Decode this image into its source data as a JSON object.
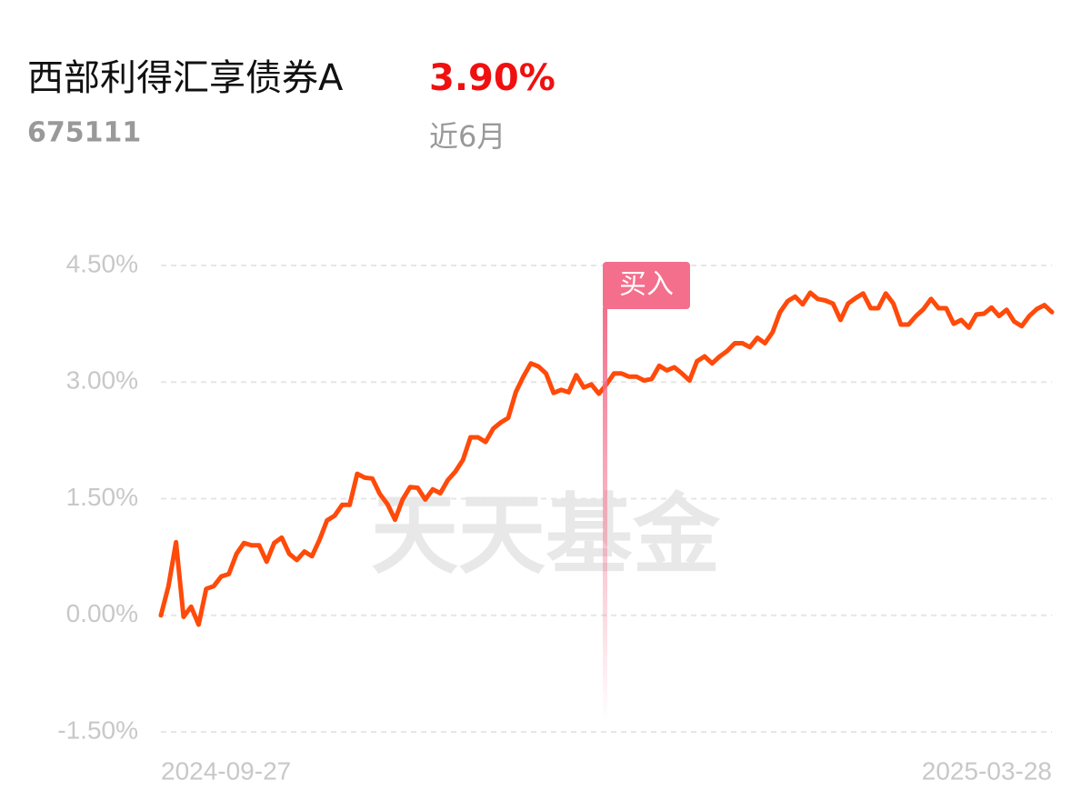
{
  "header": {
    "title": "西部利得汇享债券A",
    "code": "675111",
    "return": "3.90%",
    "period": "近6月"
  },
  "watermark": "天天基金",
  "chart_data": {
    "type": "line",
    "color": "#ff4a0a",
    "annotation": "买入",
    "grid": true,
    "categories": [
      "2024-09-27",
      null,
      null,
      null,
      null,
      null,
      null,
      null,
      null,
      null,
      null,
      null,
      null,
      null,
      null,
      null,
      null,
      null,
      null,
      null,
      null,
      null,
      null,
      null,
      null,
      null,
      null,
      null,
      null,
      null,
      null,
      null,
      null,
      null,
      null,
      null,
      null,
      null,
      null,
      null,
      null,
      null,
      null,
      null,
      null,
      null,
      null,
      null,
      null,
      null,
      null,
      null,
      null,
      null,
      null,
      null,
      null,
      null,
      null,
      null,
      null,
      null,
      null,
      null,
      null,
      null,
      null,
      null,
      null,
      null,
      null,
      null,
      null,
      null,
      null,
      null,
      null,
      null,
      null,
      null,
      null,
      null,
      null,
      null,
      null,
      null,
      null,
      null,
      null,
      null,
      null,
      null,
      null,
      null,
      null,
      null,
      null,
      null,
      null,
      null,
      null,
      null,
      null,
      null,
      null,
      null,
      null,
      null,
      null,
      null,
      null,
      null,
      null,
      null,
      null,
      null,
      null,
      null,
      "2025-03-28"
    ],
    "values": [
      0.0,
      0.375,
      0.94,
      -0.02,
      0.11,
      -0.12,
      0.34,
      0.375,
      0.5,
      0.53,
      0.79,
      0.93,
      0.9,
      0.9,
      0.69,
      0.93,
      1.0,
      0.79,
      0.71,
      0.82,
      0.76,
      0.97,
      1.22,
      1.28,
      1.42,
      1.42,
      1.82,
      1.77,
      1.76,
      1.56,
      1.43,
      1.23,
      1.49,
      1.65,
      1.64,
      1.49,
      1.62,
      1.57,
      1.74,
      1.85,
      2.0,
      2.29,
      2.29,
      2.23,
      2.4,
      2.48,
      2.54,
      2.87,
      3.07,
      3.24,
      3.2,
      3.11,
      2.86,
      2.9,
      2.87,
      3.09,
      2.93,
      2.97,
      2.85,
      2.97,
      3.11,
      3.11,
      3.07,
      3.07,
      3.02,
      3.04,
      3.21,
      3.15,
      3.19,
      3.11,
      3.02,
      3.27,
      3.33,
      3.24,
      3.33,
      3.4,
      3.5,
      3.5,
      3.45,
      3.57,
      3.5,
      3.64,
      3.9,
      4.04,
      4.1,
      4.0,
      4.15,
      4.07,
      4.05,
      4.01,
      3.8,
      4.01,
      4.08,
      4.14,
      3.95,
      3.95,
      4.14,
      4.01,
      3.74,
      3.74,
      3.85,
      3.94,
      4.07,
      3.95,
      3.95,
      3.75,
      3.8,
      3.7,
      3.87,
      3.88,
      3.96,
      3.85,
      3.93,
      3.78,
      3.72,
      3.85,
      3.94,
      3.99,
      3.9
    ],
    "ylim": [
      -1.5,
      4.5
    ],
    "yticks": [
      {
        "value": -1.5,
        "label": "-1.50%"
      },
      {
        "value": 0,
        "label": "0.00%"
      },
      {
        "value": 1.5,
        "label": "1.50%"
      },
      {
        "value": 3,
        "label": "3.00%"
      },
      {
        "value": 4.5,
        "label": "4.50%"
      }
    ]
  }
}
